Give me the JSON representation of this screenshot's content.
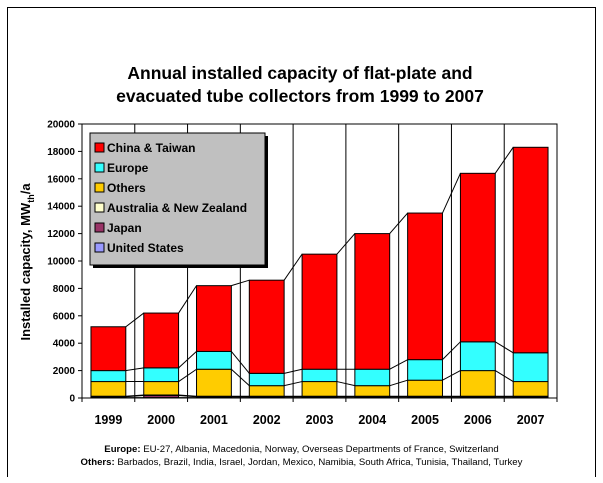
{
  "chart_data": {
    "type": "bar",
    "stacked": true,
    "title_lines": [
      "Annual installed capacity of flat-plate and",
      "evacuated tube collectors from 1999 to 2007"
    ],
    "ylabel": "Installed capacity, MW",
    "ylabel_sub": "th",
    "ylabel_suffix": "/a",
    "xlabel": "",
    "ylim": [
      0,
      20000
    ],
    "yticks": [
      "0",
      "2000",
      "4000",
      "6000",
      "8000",
      "10000",
      "12000",
      "14000",
      "16000",
      "18000",
      "20000"
    ],
    "categories": [
      "1999",
      "2000",
      "2001",
      "2002",
      "2003",
      "2004",
      "2005",
      "2006",
      "2007"
    ],
    "grid": "vertical",
    "legend_position": "top-left",
    "series": [
      {
        "name": "United States",
        "color": "#9999ff",
        "values": [
          30,
          30,
          30,
          30,
          30,
          30,
          30,
          30,
          30
        ]
      },
      {
        "name": "Japan",
        "color": "#993366",
        "values": [
          60,
          150,
          60,
          60,
          60,
          60,
          60,
          60,
          60
        ]
      },
      {
        "name": "Australia & New Zealand",
        "color": "#ffffcc",
        "values": [
          40,
          40,
          40,
          40,
          40,
          40,
          40,
          40,
          40
        ]
      },
      {
        "name": "Others",
        "color": "#ffcc00",
        "values": [
          1070,
          980,
          1970,
          770,
          1070,
          770,
          1170,
          1870,
          1070
        ]
      },
      {
        "name": "Europe",
        "color": "#33ffff",
        "values": [
          800,
          1000,
          1300,
          900,
          900,
          1200,
          1500,
          2100,
          2100
        ]
      },
      {
        "name": "China & Taiwan",
        "color": "#ff0000",
        "values": [
          3200,
          4000,
          4800,
          6800,
          8400,
          9900,
          10700,
          12300,
          15000
        ]
      }
    ],
    "legend_order": [
      "China & Taiwan",
      "Europe",
      "Others",
      "Australia & New Zealand",
      "Japan",
      "United States"
    ]
  },
  "footnotes": [
    {
      "label": "Europe:",
      "text": " EU-27, Albania, Macedonia, Norway, Overseas Departments of France, Switzerland"
    },
    {
      "label": "Others:",
      "text": " Barbados, Brazil, India, Israel, Jordan, Mexico, Namibia, South Africa, Tunisia, Thailand, Turkey"
    }
  ]
}
